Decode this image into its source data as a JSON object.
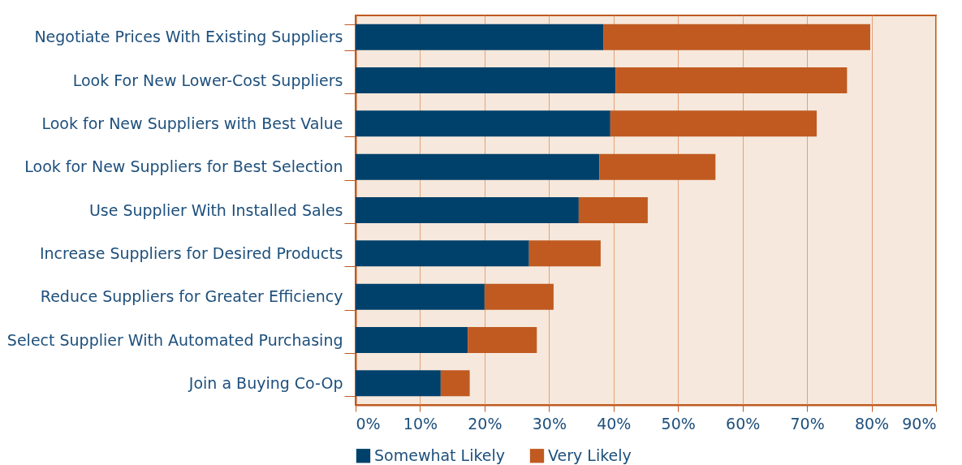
{
  "chart_data": {
    "type": "bar",
    "orientation": "horizontal",
    "stacked": true,
    "categories": [
      "Negotiate Prices With Existing Suppliers",
      "Look For New Lower-Cost Suppliers",
      "Look for New Suppliers with Best Value",
      "Look for New Suppliers for Best Selection",
      "Use Supplier With Installed Sales",
      "Increase Suppliers for Desired Products",
      "Reduce Suppliers for Greater Efficiency",
      "Select Supplier With Automated Purchasing",
      "Join a Buying Co-Op"
    ],
    "series": [
      {
        "name": "Somewhat Likely",
        "color": "#00416b",
        "values": [
          38.4,
          40.3,
          39.5,
          37.8,
          34.6,
          26.9,
          20.0,
          17.4,
          13.2
        ]
      },
      {
        "name": "Very Likely",
        "color": "#c05a20",
        "values": [
          41.4,
          35.9,
          32.0,
          18.0,
          10.7,
          11.1,
          10.7,
          10.7,
          4.5
        ]
      }
    ],
    "xlim": [
      0,
      90
    ],
    "xticks": [
      {
        "value": 0,
        "label": "0%"
      },
      {
        "value": 10,
        "label": "10%"
      },
      {
        "value": 20,
        "label": "20%"
      },
      {
        "value": 30,
        "label": "30%"
      },
      {
        "value": 40,
        "label": "40%"
      },
      {
        "value": 50,
        "label": "50%"
      },
      {
        "value": 60,
        "label": "60%"
      },
      {
        "value": 70,
        "label": "70%"
      },
      {
        "value": 80,
        "label": "80%"
      },
      {
        "value": 90,
        "label": "90%"
      }
    ],
    "grid": "x",
    "legend": "bottom"
  }
}
